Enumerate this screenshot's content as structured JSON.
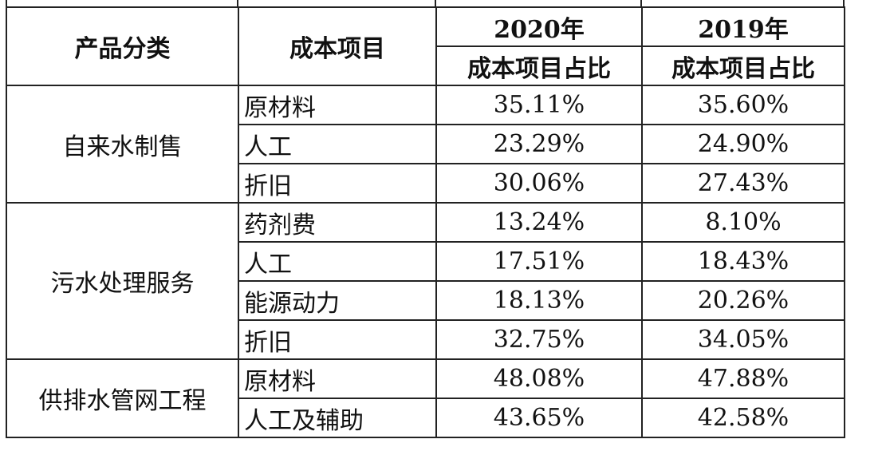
{
  "table": {
    "headers": {
      "category": "产品分类",
      "cost_item": "成本项目",
      "year_2020": "2020年",
      "year_2019": "2019年",
      "share_2020": "成本项目占比",
      "share_2019": "成本项目占比"
    },
    "groups": [
      {
        "category": "自来水制售",
        "rows": [
          {
            "item": "原材料",
            "y2020": "35.11%",
            "y2019": "35.60%"
          },
          {
            "item": "人工",
            "y2020": "23.29%",
            "y2019": "24.90%"
          },
          {
            "item": "折旧",
            "y2020": "30.06%",
            "y2019": "27.43%"
          }
        ]
      },
      {
        "category": "污水处理服务",
        "rows": [
          {
            "item": "药剂费",
            "y2020": "13.24%",
            "y2019": "8.10%"
          },
          {
            "item": "人工",
            "y2020": "17.51%",
            "y2019": "18.43%"
          },
          {
            "item": "能源动力",
            "y2020": "18.13%",
            "y2019": "20.26%"
          },
          {
            "item": "折旧",
            "y2020": "32.75%",
            "y2019": "34.05%"
          }
        ]
      },
      {
        "category": "供排水管网工程",
        "rows": [
          {
            "item": "原材料",
            "y2020": "48.08%",
            "y2019": "47.88%"
          },
          {
            "item": "人工及辅助",
            "y2020": "43.65%",
            "y2019": "42.58%"
          }
        ]
      }
    ]
  }
}
